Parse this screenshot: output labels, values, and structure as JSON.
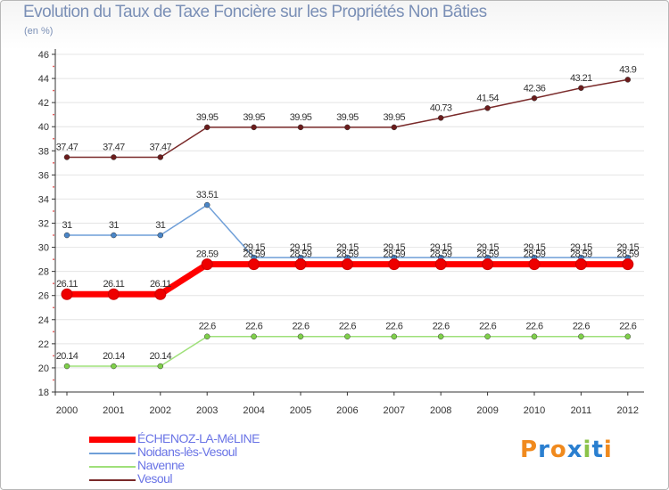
{
  "chart_data": {
    "type": "line",
    "title": "Evolution du Taux de Taxe Foncière sur les Propriétés Non Bâties",
    "ylabel": "(en %)",
    "xlabel": "",
    "ylim": [
      18,
      46
    ],
    "yticks": [
      18,
      20,
      22,
      24,
      26,
      28,
      30,
      32,
      34,
      36,
      38,
      40,
      42,
      44,
      46
    ],
    "categories": [
      "2000",
      "2001",
      "2002",
      "2003",
      "2004",
      "2005",
      "2006",
      "2007",
      "2008",
      "2009",
      "2010",
      "2011",
      "2012"
    ],
    "series": [
      {
        "name": "Vesoul",
        "color": "#7a2a2a",
        "dot": "#6b1c1c",
        "width": 1.5,
        "values": [
          37.47,
          37.47,
          37.47,
          39.95,
          39.95,
          39.95,
          39.95,
          39.95,
          40.73,
          41.54,
          42.36,
          43.21,
          43.9
        ],
        "labels": [
          "37.47",
          "37.47",
          "37.47",
          "39.95",
          "39.95",
          "39.95",
          "39.95",
          "39.95",
          "40.73",
          "41.54",
          "42.36",
          "43.21",
          "43.9"
        ]
      },
      {
        "name": "Noidans-lès-Vesoul",
        "color": "#6f9fd8",
        "dot": "#4a86c8",
        "width": 1.5,
        "values": [
          31,
          31,
          31,
          33.51,
          29.15,
          29.15,
          29.15,
          29.15,
          29.15,
          29.15,
          29.15,
          29.15,
          29.15
        ],
        "labels": [
          "31",
          "31",
          "31",
          "33.51",
          "29.15",
          "29.15",
          "29.15",
          "29.15",
          "29.15",
          "29.15",
          "29.15",
          "29.15",
          "29.15"
        ]
      },
      {
        "name": "Navenne",
        "color": "#9fe07a",
        "dot": "#7fd04a",
        "width": 1.5,
        "values": [
          20.14,
          20.14,
          20.14,
          22.6,
          22.6,
          22.6,
          22.6,
          22.6,
          22.6,
          22.6,
          22.6,
          22.6,
          22.6
        ],
        "labels": [
          "20.14",
          "20.14",
          "20.14",
          "22.6",
          "22.6",
          "22.6",
          "22.6",
          "22.6",
          "22.6",
          "22.6",
          "22.6",
          "22.6",
          "22.6"
        ]
      },
      {
        "name": "ÉCHENOZ-LA-MéLINE",
        "color": "#ff0000",
        "dot": "#ee0000",
        "width": 7,
        "values": [
          26.11,
          26.11,
          26.11,
          28.59,
          28.59,
          28.59,
          28.59,
          28.59,
          28.59,
          28.59,
          28.59,
          28.59,
          28.59
        ],
        "labels": [
          "26.11",
          "26.11",
          "26.11",
          "28.59",
          "28.59",
          "28.59",
          "28.59",
          "28.59",
          "28.59",
          "28.59",
          "28.59",
          "28.59",
          "28.59"
        ]
      }
    ],
    "legend_order": [
      "ÉCHENOZ-LA-MéLINE",
      "Noidans-lès-Vesoul",
      "Navenne",
      "Vesoul"
    ],
    "legend_position": "bottom-left"
  },
  "logo": {
    "text": "Proxiti",
    "colors": [
      "#f08a1e",
      "#2a7fd0",
      "#f08a1e",
      "#2a7fd0",
      "#8bc34a",
      "#2a7fd0",
      "#f08a1e"
    ]
  }
}
